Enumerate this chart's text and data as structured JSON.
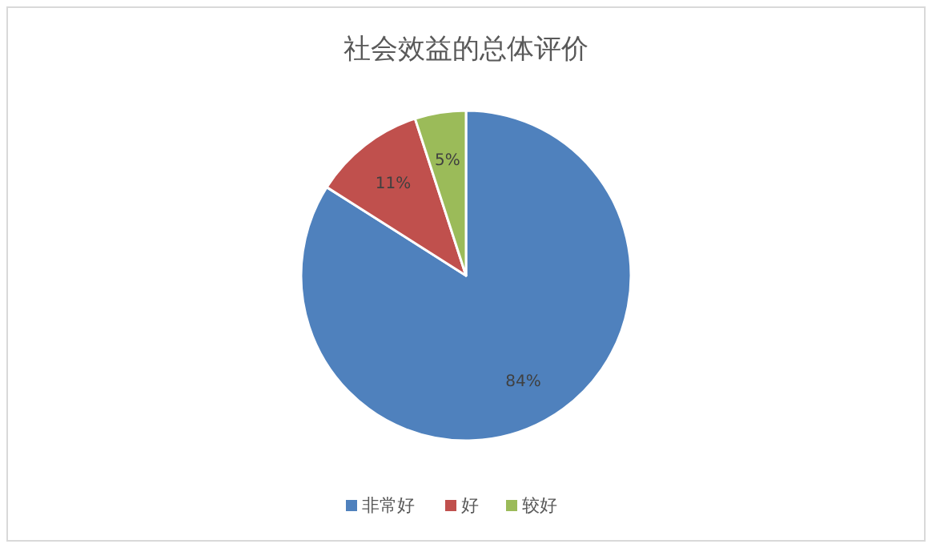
{
  "chart_data": {
    "type": "pie",
    "title": "社会效益的总体评价",
    "categories": [
      "非常好",
      "好",
      "较好"
    ],
    "values": [
      84,
      11,
      5
    ],
    "colors": [
      "#4f81bd",
      "#c0504d",
      "#9bbb59"
    ],
    "value_labels": [
      "84%",
      "11%",
      "5%"
    ],
    "legend": "bottom"
  }
}
